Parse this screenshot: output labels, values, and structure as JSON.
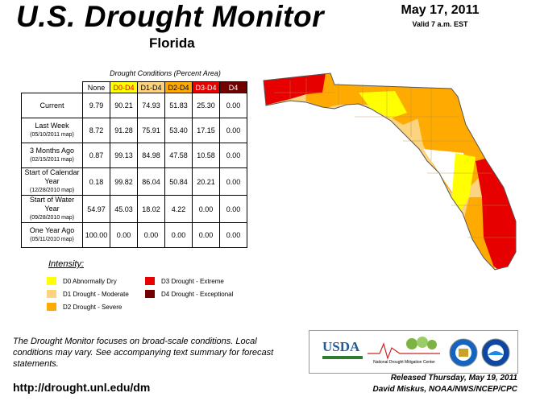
{
  "header": {
    "title": "U.S. Drought Monitor",
    "region": "Florida",
    "date": "May 17, 2011",
    "valid": "Valid 7 a.m. EST"
  },
  "table": {
    "caption": "Drought Conditions (Percent Area)",
    "columns": [
      "None",
      "D0-D4",
      "D1-D4",
      "D2-D4",
      "D3-D4",
      "D4"
    ],
    "rows": [
      {
        "label": "Current",
        "values": [
          "9.79",
          "90.21",
          "74.93",
          "51.83",
          "25.30",
          "0.00"
        ]
      },
      {
        "label": "Last Week",
        "map": "(05/10/2011 map)",
        "values": [
          "8.72",
          "91.28",
          "75.91",
          "53.40",
          "17.15",
          "0.00"
        ]
      },
      {
        "label": "3 Months Ago",
        "map": "(02/15/2011 map)",
        "values": [
          "0.87",
          "99.13",
          "84.98",
          "47.58",
          "10.58",
          "0.00"
        ]
      },
      {
        "label": "Start of Calendar Year",
        "map": "(12/28/2010 map)",
        "values": [
          "0.18",
          "99.82",
          "86.04",
          "50.84",
          "20.21",
          "0.00"
        ]
      },
      {
        "label": "Start of Water Year",
        "map": "(09/28/2010 map)",
        "values": [
          "54.97",
          "45.03",
          "18.02",
          "4.22",
          "0.00",
          "0.00"
        ]
      },
      {
        "label": "One Year Ago",
        "map": "(05/11/2010 map)",
        "values": [
          "100.00",
          "0.00",
          "0.00",
          "0.00",
          "0.00",
          "0.00"
        ]
      }
    ]
  },
  "legend": {
    "title": "Intensity:",
    "items": [
      {
        "label": "D0 Abnormally Dry",
        "color": "#ffff00"
      },
      {
        "label": "D1 Drought - Moderate",
        "color": "#fcd37f"
      },
      {
        "label": "D2 Drought - Severe",
        "color": "#ffaa00"
      },
      {
        "label": "D3 Drought - Extreme",
        "color": "#e60000"
      },
      {
        "label": "D4 Drought - Exceptional",
        "color": "#730000"
      }
    ]
  },
  "footer": {
    "note": "The Drought Monitor focuses on broad-scale conditions. Local conditions may vary. See accompanying text summary for forecast statements.",
    "url": "http://drought.unl.edu/dm",
    "released": "Released Thursday, May 19, 2011",
    "author": "David Miskus, NOAA/NWS/NCEP/CPC",
    "logos": {
      "usda": "USDA",
      "ndmc": "National Drought Mitigation Center"
    }
  }
}
